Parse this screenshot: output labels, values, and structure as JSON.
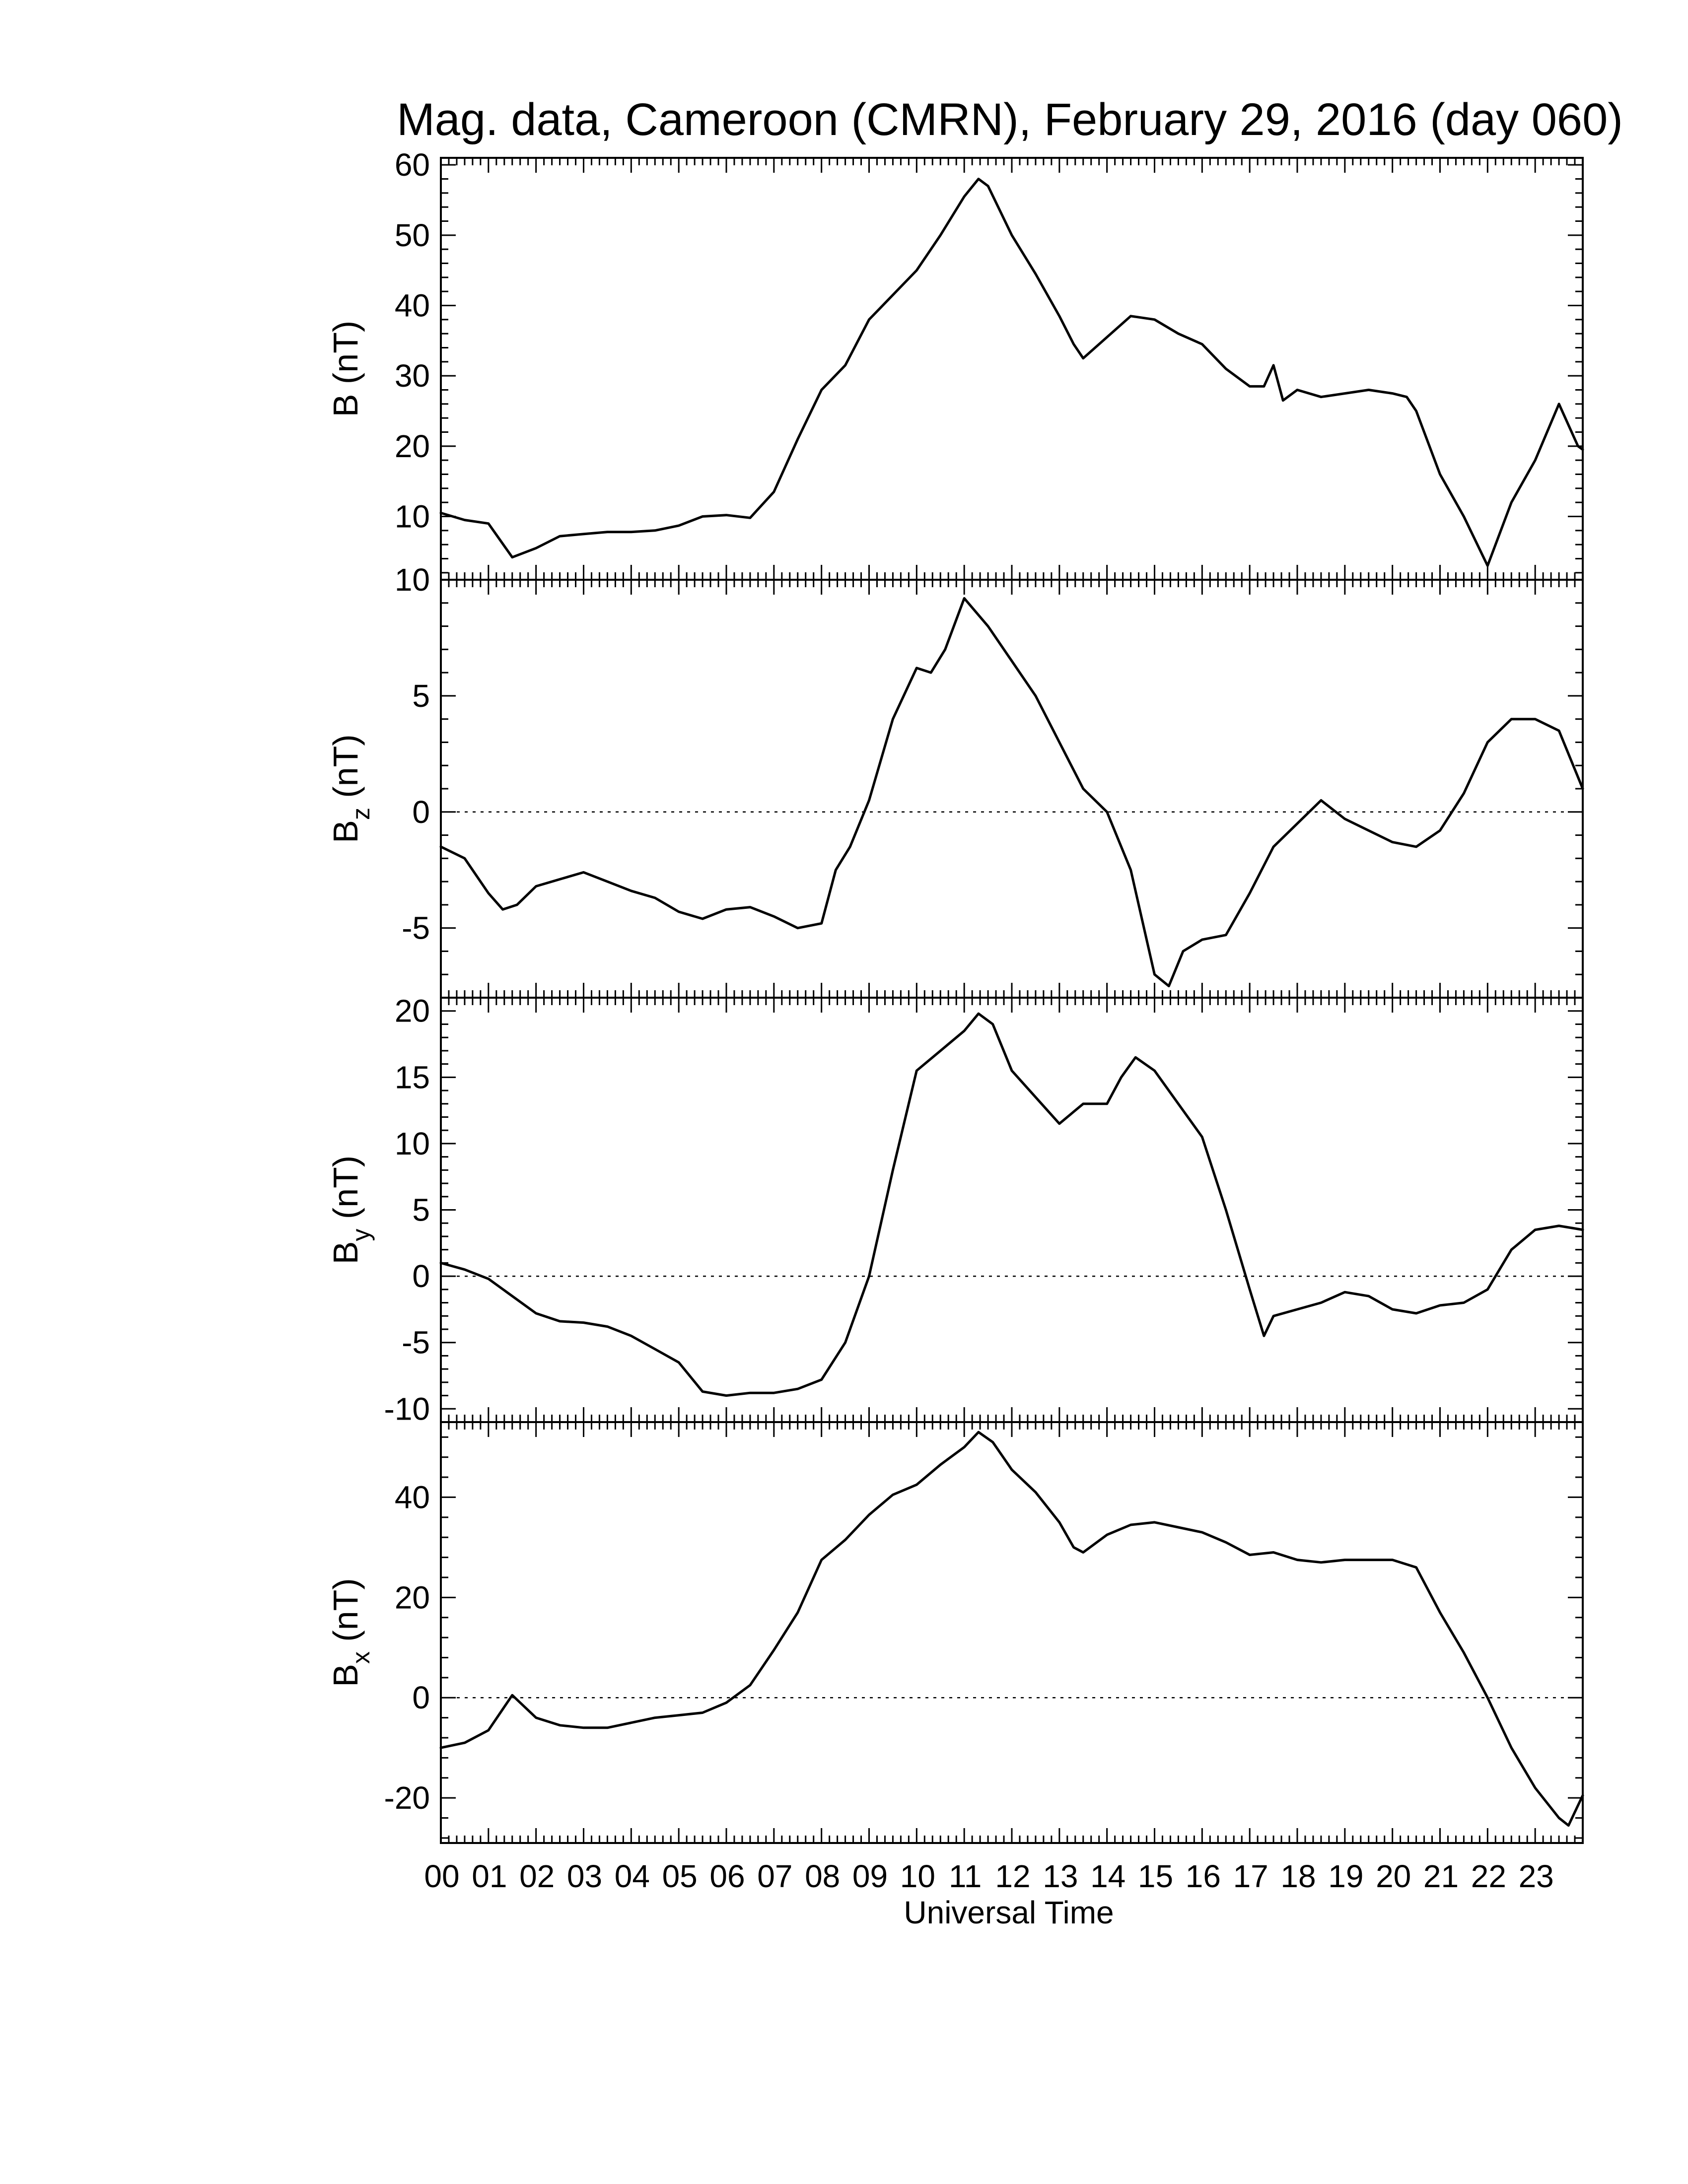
{
  "title": "Mag. data, Cameroon (CMRN), February 29, 2016 (day 060)",
  "colors": {
    "trace": "#000000",
    "background": "#ffffff",
    "zero_line": "#000000"
  },
  "chart_data": [
    {
      "id": "B",
      "type": "line",
      "ylabel": "B (nT)",
      "ylabel_main": "B",
      "ylabel_sub": "",
      "ylabel_unit": " (nT)",
      "ylim": [
        1,
        61
      ],
      "yticks": [
        10,
        20,
        30,
        40,
        50,
        60
      ],
      "ytick_labels": [
        "10",
        "20",
        "30",
        "40",
        "50",
        "60"
      ],
      "zero_line": false,
      "series": [
        {
          "x": [
            0,
            0.5,
            1.0,
            1.5,
            2.0,
            2.5,
            3.0,
            3.5,
            4.0,
            4.5,
            5.0,
            5.5,
            6.0,
            6.5,
            7.0,
            7.5,
            8.0,
            8.5,
            9.0,
            9.5,
            10.0,
            10.5,
            11.0,
            11.3,
            11.5,
            12.0,
            12.5,
            13.0,
            13.3,
            13.5,
            14.0,
            14.5,
            15.0,
            15.5,
            16.0,
            16.5,
            17.0,
            17.3,
            17.5,
            17.7,
            18.0,
            18.5,
            19.0,
            19.5,
            20.0,
            20.3,
            20.5,
            21.0,
            21.5,
            22.0,
            22.5,
            23.0,
            23.5,
            23.9,
            24.0
          ],
          "y": [
            10.5,
            9.5,
            9.0,
            4.2,
            5.5,
            7.2,
            7.5,
            7.8,
            7.8,
            8.0,
            8.7,
            10.0,
            10.2,
            9.8,
            13.5,
            21.0,
            28.0,
            31.5,
            38.0,
            41.5,
            45.0,
            50.0,
            55.5,
            58.0,
            57.0,
            50.0,
            44.5,
            38.5,
            34.5,
            32.5,
            35.5,
            38.5,
            38.0,
            36.0,
            34.5,
            31.0,
            28.5,
            28.5,
            31.5,
            26.5,
            28.0,
            27.0,
            27.5,
            28.0,
            27.5,
            27.0,
            25.0,
            16.0,
            10.0,
            3.0,
            12.0,
            18.0,
            26.0,
            20.0,
            19.5
          ]
        }
      ]
    },
    {
      "id": "Bz",
      "type": "line",
      "ylabel": "Bz (nT)",
      "ylabel_main": "B",
      "ylabel_sub": "z",
      "ylabel_unit": " (nT)",
      "ylim": [
        -8,
        10
      ],
      "yticks": [
        -5,
        0,
        5,
        10
      ],
      "ytick_labels": [
        "-5",
        "0",
        "5",
        "10"
      ],
      "zero_line": true,
      "series": [
        {
          "x": [
            0,
            0.5,
            1.0,
            1.3,
            1.6,
            2.0,
            2.5,
            3.0,
            3.5,
            4.0,
            4.5,
            5.0,
            5.5,
            6.0,
            6.5,
            7.0,
            7.5,
            8.0,
            8.3,
            8.6,
            9.0,
            9.5,
            10.0,
            10.3,
            10.6,
            11.0,
            11.5,
            12.0,
            12.5,
            13.0,
            13.5,
            14.0,
            14.5,
            15.0,
            15.3,
            15.6,
            16.0,
            16.5,
            17.0,
            17.5,
            18.0,
            18.5,
            19.0,
            19.5,
            20.0,
            20.5,
            21.0,
            21.5,
            22.0,
            22.5,
            23.0,
            23.5,
            24.0
          ],
          "y": [
            -1.5,
            -2.0,
            -3.5,
            -4.2,
            -4.0,
            -3.2,
            -2.9,
            -2.6,
            -3.0,
            -3.4,
            -3.7,
            -4.3,
            -4.6,
            -4.2,
            -4.1,
            -4.5,
            -5.0,
            -4.8,
            -2.5,
            -1.5,
            0.5,
            4.0,
            6.2,
            6.0,
            7.0,
            9.2,
            8.0,
            6.5,
            5.0,
            3.0,
            1.0,
            0.0,
            -2.5,
            -7.0,
            -7.5,
            -6.0,
            -5.5,
            -5.3,
            -3.5,
            -1.5,
            -0.5,
            0.5,
            -0.3,
            -0.8,
            -1.3,
            -1.5,
            -0.8,
            0.8,
            3.0,
            4.0,
            4.0,
            3.5,
            1.0
          ]
        }
      ]
    },
    {
      "id": "By",
      "type": "line",
      "ylabel": "By (nT)",
      "ylabel_main": "B",
      "ylabel_sub": "y",
      "ylabel_unit": " (nT)",
      "ylim": [
        -11,
        21
      ],
      "yticks": [
        -10,
        -5,
        0,
        5,
        10,
        15,
        20
      ],
      "ytick_labels": [
        "-10",
        "-5",
        "0",
        "5",
        "10",
        "15",
        "20"
      ],
      "zero_line": true,
      "series": [
        {
          "x": [
            0,
            0.5,
            1.0,
            1.5,
            2.0,
            2.5,
            3.0,
            3.5,
            4.0,
            4.5,
            5.0,
            5.5,
            6.0,
            6.5,
            7.0,
            7.5,
            8.0,
            8.5,
            9.0,
            9.5,
            10.0,
            10.5,
            11.0,
            11.3,
            11.6,
            12.0,
            12.5,
            13.0,
            13.5,
            14.0,
            14.3,
            14.6,
            15.0,
            15.5,
            16.0,
            16.5,
            17.0,
            17.3,
            17.5,
            18.0,
            18.5,
            19.0,
            19.5,
            20.0,
            20.5,
            21.0,
            21.5,
            22.0,
            22.5,
            23.0,
            23.5,
            24.0
          ],
          "y": [
            1.0,
            0.5,
            -0.2,
            -1.5,
            -2.8,
            -3.4,
            -3.5,
            -3.8,
            -4.5,
            -5.5,
            -6.5,
            -8.7,
            -9.0,
            -8.8,
            -8.8,
            -8.5,
            -7.8,
            -5.0,
            0.0,
            8.0,
            15.5,
            17.0,
            18.5,
            19.8,
            19.0,
            15.5,
            13.5,
            11.5,
            13.0,
            13.0,
            15.0,
            16.5,
            15.5,
            13.0,
            10.5,
            5.0,
            -1.0,
            -4.5,
            -3.0,
            -2.5,
            -2.0,
            -1.2,
            -1.5,
            -2.5,
            -2.8,
            -2.2,
            -2.0,
            -1.0,
            2.0,
            3.5,
            3.8,
            3.5
          ]
        }
      ]
    },
    {
      "id": "Bx",
      "type": "line",
      "ylabel": "Bx (nT)",
      "ylabel_main": "B",
      "ylabel_sub": "x",
      "ylabel_unit": " (nT)",
      "ylim": [
        -29,
        55
      ],
      "yticks": [
        -20,
        0,
        20,
        40
      ],
      "ytick_labels": [
        "-20",
        "0",
        "20",
        "40"
      ],
      "zero_line": true,
      "series": [
        {
          "x": [
            0,
            0.5,
            1.0,
            1.5,
            2.0,
            2.5,
            3.0,
            3.5,
            4.0,
            4.5,
            5.0,
            5.5,
            6.0,
            6.5,
            7.0,
            7.5,
            8.0,
            8.5,
            9.0,
            9.5,
            10.0,
            10.5,
            11.0,
            11.3,
            11.6,
            12.0,
            12.5,
            13.0,
            13.3,
            13.5,
            14.0,
            14.5,
            15.0,
            15.5,
            16.0,
            16.5,
            17.0,
            17.5,
            18.0,
            18.5,
            19.0,
            19.5,
            20.0,
            20.5,
            21.0,
            21.5,
            22.0,
            22.5,
            23.0,
            23.5,
            23.7,
            24.0
          ],
          "y": [
            -10.0,
            -9.0,
            -6.5,
            0.5,
            -4.0,
            -5.5,
            -6.0,
            -6.0,
            -5.0,
            -4.0,
            -3.5,
            -3.0,
            -1.0,
            2.5,
            9.5,
            17.0,
            27.5,
            31.5,
            36.5,
            40.5,
            42.5,
            46.5,
            50.0,
            53.0,
            51.0,
            45.5,
            41.0,
            35.0,
            30.0,
            29.0,
            32.5,
            34.5,
            35.0,
            34.0,
            33.0,
            31.0,
            28.5,
            29.0,
            27.5,
            27.0,
            27.5,
            27.5,
            27.5,
            26.0,
            17.0,
            9.0,
            0.0,
            -10.0,
            -18.0,
            -24.0,
            -25.5,
            -19.5
          ]
        }
      ]
    }
  ],
  "xaxis": {
    "label": "Universal Time",
    "xlim": [
      0,
      24
    ],
    "ticks": [
      0,
      1,
      2,
      3,
      4,
      5,
      6,
      7,
      8,
      9,
      10,
      11,
      12,
      13,
      14,
      15,
      16,
      17,
      18,
      19,
      20,
      21,
      22,
      23
    ],
    "tick_labels": [
      "00",
      "01",
      "02",
      "03",
      "04",
      "05",
      "06",
      "07",
      "08",
      "09",
      "10",
      "11",
      "12",
      "13",
      "14",
      "15",
      "16",
      "17",
      "18",
      "19",
      "20",
      "21",
      "22",
      "23"
    ]
  }
}
